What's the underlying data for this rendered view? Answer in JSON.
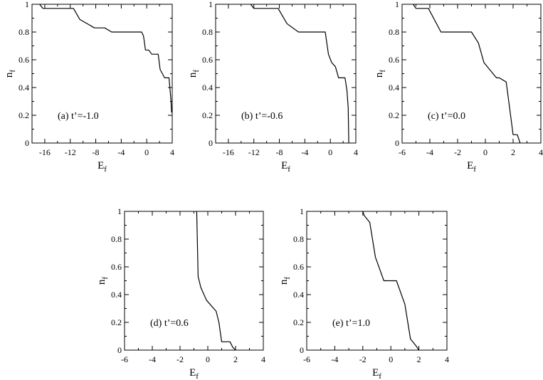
{
  "chart_data": [
    {
      "type": "line",
      "annotation": "(a)  t’=-1.0",
      "xlabel": "E",
      "xlabel_sub": "f",
      "ylabel": "n",
      "ylabel_sub": "f",
      "xlim": [
        -18,
        4
      ],
      "ylim": [
        0,
        1
      ],
      "xticks": [
        -16,
        -12,
        -8,
        -4,
        0,
        4
      ],
      "yticks": [
        0,
        0.2,
        0.4,
        0.6,
        0.8,
        1
      ],
      "x": [
        -16.8,
        -16.3,
        -11.5,
        -10.5,
        -8.2,
        -6.6,
        -5.5,
        -0.8,
        -0.5,
        -0.2,
        0.3,
        0.8,
        1.8,
        2.1,
        2.8,
        3.5,
        3.8,
        3.9
      ],
      "y": [
        1.0,
        0.97,
        0.97,
        0.89,
        0.83,
        0.83,
        0.8,
        0.8,
        0.77,
        0.67,
        0.67,
        0.64,
        0.64,
        0.53,
        0.47,
        0.47,
        0.31,
        0.22
      ]
    },
    {
      "type": "line",
      "annotation": "(b)  t’=-0.6",
      "xlabel": "E",
      "xlabel_sub": "f",
      "ylabel": "n",
      "ylabel_sub": "f",
      "xlim": [
        -18,
        4
      ],
      "ylim": [
        0,
        1
      ],
      "xticks": [
        -16,
        -12,
        -8,
        -4,
        0,
        4
      ],
      "yticks": [
        0,
        0.2,
        0.4,
        0.6,
        0.8,
        1
      ],
      "x": [
        -12.5,
        -12.0,
        -8.2,
        -6.8,
        -5.0,
        -0.8,
        -0.3,
        0.2,
        0.8,
        1.3,
        2.3,
        2.6,
        2.8,
        2.9
      ],
      "y": [
        1.0,
        0.97,
        0.97,
        0.86,
        0.8,
        0.8,
        0.64,
        0.58,
        0.55,
        0.47,
        0.47,
        0.38,
        0.25,
        0.0
      ]
    },
    {
      "type": "line",
      "annotation": "(c)  t’=0.0",
      "xlabel": "E",
      "xlabel_sub": "f",
      "ylabel": "n",
      "ylabel_sub": "f",
      "xlim": [
        -6,
        4
      ],
      "ylim": [
        0,
        1
      ],
      "xticks": [
        -6,
        -4,
        -2,
        0,
        2,
        4
      ],
      "yticks": [
        0,
        0.2,
        0.4,
        0.6,
        0.8,
        1
      ],
      "x": [
        -5.2,
        -5.0,
        -4.1,
        -3.2,
        -1.0,
        -0.5,
        -0.1,
        0.3,
        0.8,
        1.0,
        1.5,
        2.0,
        2.3,
        2.5
      ],
      "y": [
        1.0,
        0.97,
        0.97,
        0.8,
        0.8,
        0.72,
        0.58,
        0.53,
        0.47,
        0.47,
        0.44,
        0.06,
        0.06,
        0.0
      ]
    },
    {
      "type": "line",
      "annotation": "(d)  t’=0.6",
      "xlabel": "E",
      "xlabel_sub": "f",
      "ylabel": "n",
      "ylabel_sub": "f",
      "xlim": [
        -6,
        4
      ],
      "ylim": [
        0,
        1
      ],
      "xticks": [
        -6,
        -4,
        -2,
        0,
        2,
        4
      ],
      "yticks": [
        0,
        0.2,
        0.4,
        0.6,
        0.8,
        1
      ],
      "x": [
        -0.8,
        -0.7,
        -0.5,
        -0.1,
        0.6,
        0.8,
        1.0,
        1.6,
        1.8,
        2.0
      ],
      "y": [
        1.0,
        0.53,
        0.45,
        0.36,
        0.28,
        0.2,
        0.06,
        0.06,
        0.02,
        0.0
      ]
    },
    {
      "type": "line",
      "annotation": "(e)  t’=1.0",
      "xlabel": "E",
      "xlabel_sub": "f",
      "ylabel": "n",
      "ylabel_sub": "f",
      "xlim": [
        -6,
        4
      ],
      "ylim": [
        0,
        1
      ],
      "xticks": [
        -6,
        -4,
        -2,
        0,
        2,
        4
      ],
      "yticks": [
        0,
        0.2,
        0.4,
        0.6,
        0.8,
        1
      ],
      "x": [
        -2.0,
        -1.9,
        -1.5,
        -1.1,
        -0.5,
        0.4,
        1.0,
        1.4,
        1.8,
        2.0
      ],
      "y": [
        1.0,
        0.97,
        0.92,
        0.67,
        0.5,
        0.5,
        0.33,
        0.08,
        0.03,
        0.0
      ]
    }
  ]
}
